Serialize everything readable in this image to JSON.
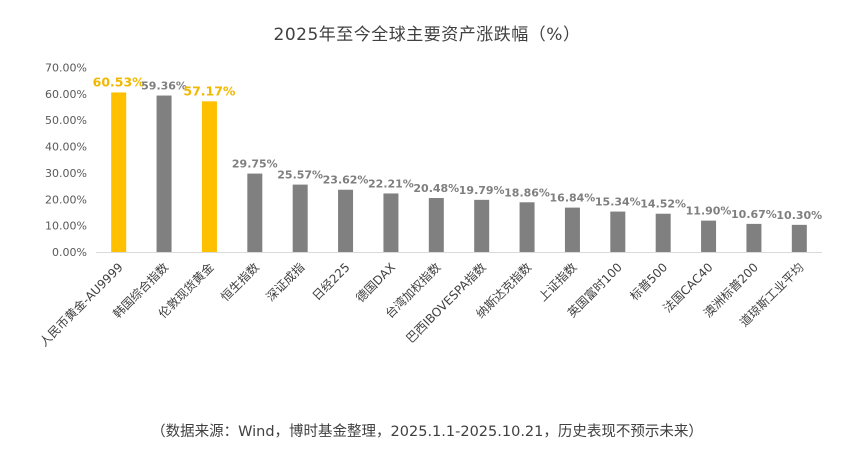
{
  "chart_data": {
    "type": "bar",
    "title": "2025年至今全球主要资产涨跌幅（%）",
    "categories": [
      "人民币黄金-AU9999",
      "韩国综合指数",
      "伦敦现货黄金",
      "恒生指数",
      "深证成指",
      "日经225",
      "德国DAX",
      "台湾加权指数",
      "巴西IBOVESPA指数",
      "纳斯达克指数",
      "上证指数",
      "英国富时100",
      "标普500",
      "法国CAC40",
      "澳洲标普200",
      "道琼斯工业平均"
    ],
    "values": [
      60.53,
      59.36,
      57.17,
      29.75,
      25.57,
      23.62,
      22.21,
      20.48,
      19.79,
      18.86,
      16.84,
      15.34,
      14.52,
      11.9,
      10.67,
      10.3
    ],
    "value_labels": [
      "60.53%",
      "59.36%",
      "57.17%",
      "29.75%",
      "25.57%",
      "23.62%",
      "22.21%",
      "20.48%",
      "19.79%",
      "18.86%",
      "16.84%",
      "15.34%",
      "14.52%",
      "11.90%",
      "10.67%",
      "10.30%"
    ],
    "highlighted": [
      true,
      false,
      true,
      false,
      false,
      false,
      false,
      false,
      false,
      false,
      false,
      false,
      false,
      false,
      false,
      false
    ],
    "y_ticks": [
      "0.00%",
      "10.00%",
      "20.00%",
      "30.00%",
      "40.00%",
      "50.00%",
      "60.00%",
      "70.00%"
    ],
    "ylim": [
      0,
      70
    ],
    "xlabel": "",
    "ylabel": "",
    "grid": false,
    "colors": {
      "highlight": "#ffc000",
      "normal": "#808080",
      "highlight_label": "#f2b800",
      "normal_label": "#7f7f7f"
    }
  },
  "footnote": "（数据来源：Wind，博时基金整理，2025.1.1-2025.10.21，历史表现不预示未来）"
}
